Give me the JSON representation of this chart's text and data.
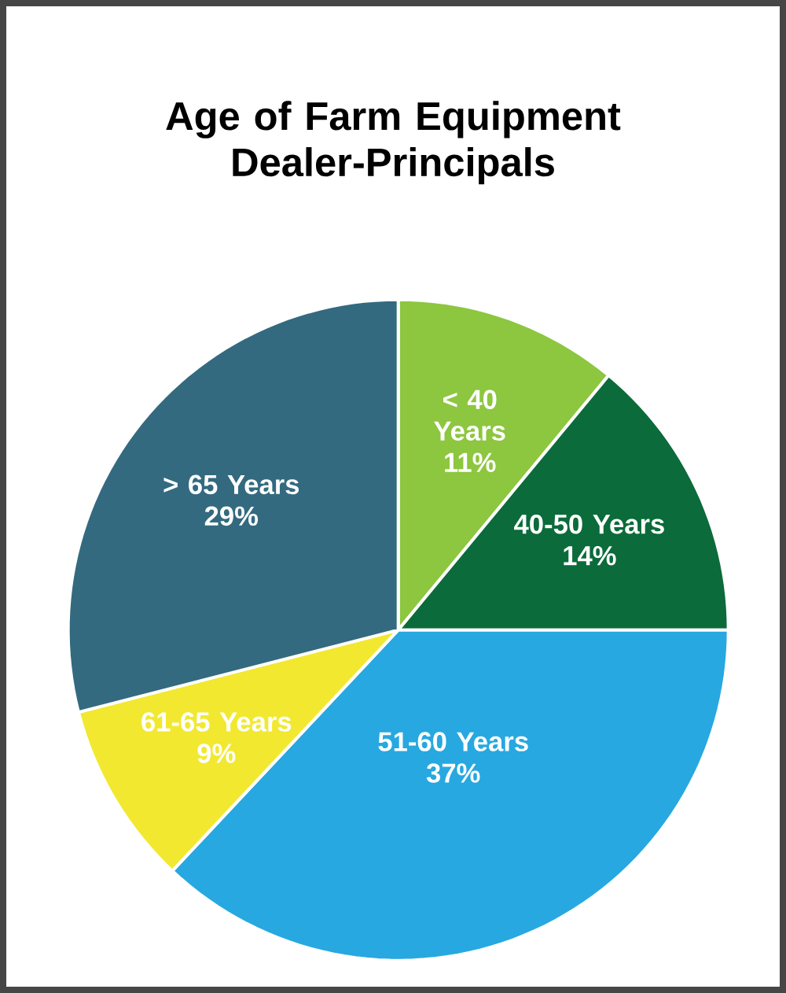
{
  "chart_data": {
    "type": "pie",
    "title": "Age of Farm Equipment Dealer-Principals",
    "categories": [
      "< 40 Years",
      "40-50 Years",
      "51-60 Years",
      "61-65 Years",
      "> 65 Years"
    ],
    "values": [
      11,
      14,
      37,
      9,
      29
    ],
    "value_labels": [
      "11%",
      "14%",
      "37%",
      "9%",
      "29%"
    ],
    "colors": [
      "#8dc63f",
      "#0b6b3a",
      "#27a8e0",
      "#f2e830",
      "#336a7f"
    ]
  }
}
